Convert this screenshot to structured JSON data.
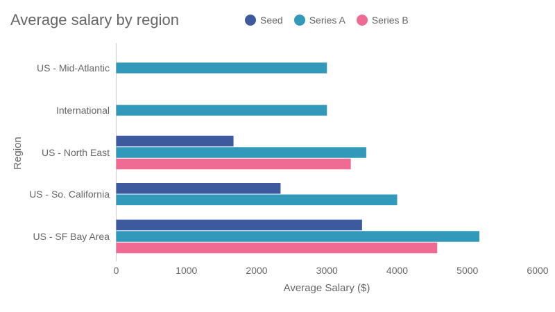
{
  "chart_data": {
    "type": "bar",
    "orientation": "horizontal",
    "title": "Average salary by region",
    "xlabel": "Average Salary ($)",
    "ylabel": "Region",
    "categories": [
      "US - Mid-Atlantic",
      "International",
      "US - North East",
      "US - So. California",
      "US - SF Bay Area"
    ],
    "series": [
      {
        "name": "Seed",
        "color": "#3d5a9e",
        "values": [
          null,
          null,
          1670,
          2340,
          3500
        ]
      },
      {
        "name": "Series A",
        "color": "#3399bb",
        "values": [
          3000,
          3000,
          3560,
          4000,
          5170
        ]
      },
      {
        "name": "Series B",
        "color": "#f06b93",
        "values": [
          null,
          null,
          3340,
          null,
          4570
        ]
      }
    ],
    "xlim": [
      0,
      6000
    ],
    "xticks": [
      "0",
      "1000",
      "2000",
      "3000",
      "4000",
      "5000",
      "6000"
    ],
    "legend_position": "top",
    "grid": false
  }
}
